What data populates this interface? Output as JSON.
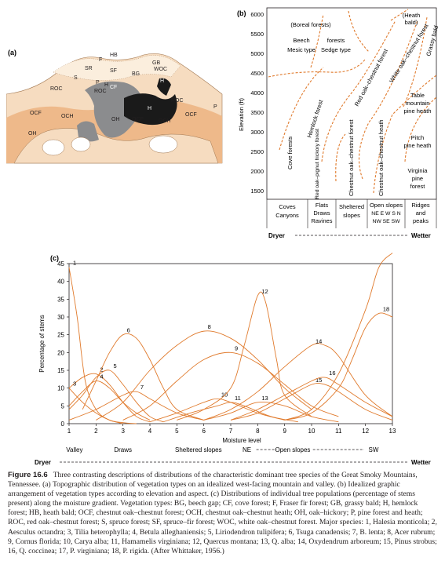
{
  "panel_a": {
    "label": "(a)",
    "regions": [
      "HB",
      "F",
      "SR",
      "SF",
      "BG",
      "GB",
      "WOC",
      "S",
      "P",
      "H",
      "ROC",
      "CF",
      "ROC",
      "H",
      "H",
      "ROC",
      "OCF",
      "OCH",
      "OH",
      "OCF",
      "OCH",
      "OCF",
      "P",
      "OH"
    ]
  },
  "panel_b": {
    "label": "(b)",
    "ylabel": "Elevation (ft)",
    "yticks": [
      "6000",
      "5500",
      "5000",
      "4500",
      "4000",
      "3500",
      "3000",
      "2500",
      "2000",
      "1500"
    ],
    "top_labels": {
      "boreal": "(Boreal forests)",
      "heath": "(Heath",
      "bald": "bald)",
      "beech": "Beech",
      "forests": "forests",
      "mesic": "Mesic type",
      "sedge": "Sedge type"
    },
    "rotated_labels": [
      "Cove forests",
      "Hemlock forest",
      "Red oak–chestnut forest",
      "White oak–chestnut forest",
      "Grassy bald",
      "Red oak–pignut hickory forest",
      "Chestnut oak–chestnut forest",
      "Chestnut oak–chestnut heath"
    ],
    "right_labels": {
      "table1": "Table",
      "table2": "mountain",
      "table3": "pine heath",
      "pitch1": "Pitch",
      "pitch2": "pine heath",
      "va1": "Virginia",
      "va2": "pine",
      "va3": "forest"
    },
    "sites": {
      "coves": [
        "Coves",
        "Canyons"
      ],
      "flats": [
        "Flats",
        "Draws",
        "Ravines"
      ],
      "sheltered": [
        "Sheltered",
        "slopes"
      ],
      "open": [
        "Open slopes",
        "NE E W S N",
        "NW SE SW"
      ],
      "ridges": [
        "Ridges",
        "and",
        "peaks"
      ]
    },
    "dryer": "Dryer",
    "wetter": "Wetter"
  },
  "chart_data": {
    "type": "line",
    "title": "(c)",
    "xlabel": "Moisture level",
    "ylabel": "Percentage of stems",
    "xlim": [
      1,
      13
    ],
    "ylim": [
      0,
      45
    ],
    "xticks": [
      "1",
      "2",
      "3",
      "4",
      "5",
      "6",
      "7",
      "8",
      "9",
      "10",
      "11",
      "12",
      "13"
    ],
    "yticks": [
      "0",
      "5",
      "10",
      "15",
      "20",
      "25",
      "30",
      "35",
      "40",
      "45"
    ],
    "x_sites": [
      "Valley",
      "Draws",
      "Sheltered slopes",
      "NE",
      "Open slopes",
      "SW"
    ],
    "dryer": "Dryer",
    "wetter": "Wetter",
    "series": [
      {
        "name": "1",
        "x": [
          1,
          1.3,
          1.6,
          2,
          2.5,
          3,
          3.5
        ],
        "values": [
          44,
          30,
          12,
          4,
          1,
          0.3,
          0
        ]
      },
      {
        "name": "2",
        "x": [
          1,
          1.5,
          2,
          2.5,
          3,
          3.5,
          4
        ],
        "values": [
          10,
          13,
          14,
          11,
          6,
          2,
          0.5
        ]
      },
      {
        "name": "3",
        "x": [
          1,
          1.5,
          2,
          2.5,
          3
        ],
        "values": [
          10,
          6,
          3,
          1,
          0
        ]
      },
      {
        "name": "4",
        "x": [
          1,
          1.5,
          2,
          2.5,
          3,
          3.5,
          4
        ],
        "values": [
          5,
          9,
          12,
          10,
          6,
          3,
          1
        ]
      },
      {
        "name": "5",
        "x": [
          1,
          1.5,
          2,
          2.5,
          3,
          3.5,
          4,
          4.5
        ],
        "values": [
          4,
          8,
          13,
          15,
          11,
          6,
          2,
          0.5
        ]
      },
      {
        "name": "6",
        "x": [
          1.5,
          2,
          2.5,
          3,
          3.5,
          4,
          4.5,
          5,
          6
        ],
        "values": [
          4,
          12,
          20,
          25,
          24,
          18,
          10,
          4,
          1
        ]
      },
      {
        "name": "7",
        "x": [
          1,
          2,
          3,
          3.5,
          4,
          5,
          6
        ],
        "values": [
          1,
          4,
          8,
          9,
          7,
          3,
          1
        ]
      },
      {
        "name": "8",
        "x": [
          2,
          3,
          4,
          5,
          6,
          7,
          8,
          9,
          10
        ],
        "values": [
          1,
          6,
          15,
          22,
          26,
          24,
          18,
          10,
          4
        ]
      },
      {
        "name": "9",
        "x": [
          3,
          4,
          5,
          6,
          7,
          8,
          9,
          10,
          11
        ],
        "values": [
          1,
          5,
          12,
          18,
          20,
          17,
          11,
          5,
          2
        ]
      },
      {
        "name": "10",
        "x": [
          4,
          5,
          6,
          6.5,
          7,
          8,
          9
        ],
        "values": [
          0.5,
          3,
          6,
          7,
          6,
          3,
          1
        ]
      },
      {
        "name": "11",
        "x": [
          4.5,
          5.5,
          6.5,
          7,
          7.5,
          8.5,
          9.5
        ],
        "values": [
          0.5,
          3,
          5,
          6,
          5,
          2,
          0.5
        ]
      },
      {
        "name": "12",
        "x": [
          5,
          6,
          7,
          7.5,
          8,
          8.3,
          8.7,
          9,
          10
        ],
        "values": [
          1,
          4,
          10,
          22,
          36,
          34,
          18,
          8,
          2
        ]
      },
      {
        "name": "13",
        "x": [
          6,
          7,
          8,
          9,
          10,
          11
        ],
        "values": [
          1,
          3,
          6,
          5,
          2,
          0.5
        ]
      },
      {
        "name": "14",
        "x": [
          6,
          7,
          8,
          9,
          10,
          10.5,
          11,
          12,
          13
        ],
        "values": [
          1,
          4,
          9,
          16,
          22,
          22,
          19,
          8,
          2
        ]
      },
      {
        "name": "15",
        "x": [
          7,
          8,
          9,
          10,
          10.5,
          11,
          12,
          13
        ],
        "values": [
          1,
          3,
          7,
          11,
          11,
          9,
          4,
          1
        ]
      },
      {
        "name": "16",
        "x": [
          7,
          8,
          9,
          10,
          10.5,
          11,
          12,
          13
        ],
        "values": [
          1,
          4,
          8,
          12,
          13,
          11,
          6,
          2
        ]
      },
      {
        "name": "17",
        "x": [
          9,
          10,
          11,
          12,
          12.5,
          13
        ],
        "values": [
          1,
          4,
          14,
          32,
          44,
          48
        ]
      },
      {
        "name": "18",
        "x": [
          9,
          10,
          11,
          11.5,
          12,
          12.5,
          13
        ],
        "values": [
          1,
          3,
          10,
          18,
          27,
          31,
          30
        ]
      }
    ]
  },
  "caption": {
    "figure": "Figure 16.6",
    "text": "Three contrasting descriptions of distributions of the characteristic dominant tree species of the Great Smoky Mountains, Tennessee. (a) Topographic distribution of vegetation types on an idealized west-facing mountain and valley. (b) Idealized graphic arrangement of vegetation types according to elevation and aspect. (c) Distributions of individual tree populations (percentage of stems present) along the moisture gradient. Vegetation types: BG, beech gap; CF, cove forest; F, Fraser fir forest; GB, grassy bald; H, hemlock forest; HB, heath bald; OCF, chestnut oak–chestnut forest; OCH, chestnut oak–chestnut heath; OH, oak–hickory; P, pine forest and heath; ROC, red oak–chestnut forest; S, spruce forest; SF, spruce–fir forest; WOC, white oak–chestnut forest. Major species: 1, Halesia monticola; 2, Aesculus octandra; 3, Tilia heterophylla; 4, Betula alleghaniensis; 5, Liriodendron tulipifera; 6, Tsuga canadensis; 7, B. lenta; 8, Acer rubrum; 9, Cornus florida; 10, Carya alba; 11, Hamamelis virginiana; 12, Quercus montana; 13, Q. alba; 14, Oxydendrum arboreum; 15, Pinus strobus; 16, Q. coccinea; 17, P. virginiana; 18, P. rigida. (After Whittaker, 1956.)"
  },
  "colors": {
    "orange": "#e07a2c",
    "light_peach": "#f6dcc0",
    "peach": "#eeb98a",
    "gray": "#8b8c8e",
    "black": "#1a1a1a"
  }
}
